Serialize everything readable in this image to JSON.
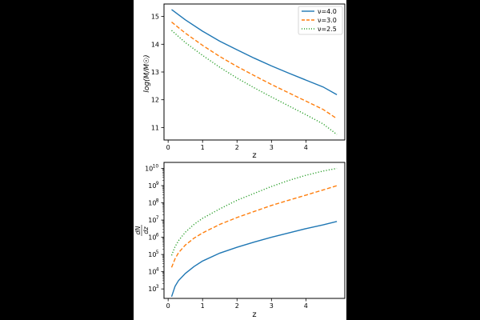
{
  "figure": {
    "background": "#ffffff",
    "page_background": "#000000"
  },
  "chart_data": [
    {
      "type": "line",
      "xlabel": "z",
      "ylabel_html": "log(M/M☉)",
      "ylabel": "log(M/M_☉)",
      "xlim": [
        -0.12,
        5.13
      ],
      "ylim": [
        10.55,
        15.45
      ],
      "x_ticks": [
        0,
        1,
        2,
        3,
        4
      ],
      "x_tick_labels": [
        "0",
        "1",
        "2",
        "3",
        "4"
      ],
      "y_ticks": [
        11,
        12,
        13,
        14,
        15
      ],
      "y_tick_labels": [
        "11",
        "12",
        "13",
        "14",
        "15"
      ],
      "legend": {
        "placement": "top-right"
      },
      "series": [
        {
          "name": "ν=4.0",
          "color": "#1f77b4",
          "dash": "solid",
          "x": [
            0.1,
            0.5,
            1.0,
            1.5,
            2.0,
            2.5,
            3.0,
            3.5,
            4.0,
            4.5,
            4.9
          ],
          "y": [
            15.25,
            14.88,
            14.47,
            14.11,
            13.8,
            13.5,
            13.22,
            12.96,
            12.71,
            12.46,
            12.18
          ]
        },
        {
          "name": "ν=3.0",
          "color": "#ff7f0e",
          "dash": "dashed",
          "x": [
            0.1,
            0.5,
            1.0,
            1.5,
            2.0,
            2.5,
            3.0,
            3.5,
            4.0,
            4.5,
            4.9
          ],
          "y": [
            14.8,
            14.4,
            13.96,
            13.56,
            13.2,
            12.87,
            12.55,
            12.25,
            11.95,
            11.65,
            11.32
          ]
        },
        {
          "name": "ν=2.5",
          "color": "#2ca02c",
          "dash": "dotted",
          "x": [
            0.1,
            0.5,
            1.0,
            1.5,
            2.0,
            2.5,
            3.0,
            3.5,
            4.0,
            4.5,
            4.9
          ],
          "y": [
            14.5,
            14.06,
            13.6,
            13.17,
            12.78,
            12.43,
            12.1,
            11.78,
            11.46,
            11.13,
            10.75
          ]
        }
      ]
    },
    {
      "type": "line",
      "xlabel": "z",
      "ylabel": "dN/dz",
      "ylabel_num": "dN",
      "ylabel_den": "dz",
      "yscale": "log",
      "xlim": [
        -0.12,
        5.13
      ],
      "ylim_log10": [
        2.45,
        10.35
      ],
      "x_ticks": [
        0,
        1,
        2,
        3,
        4
      ],
      "x_tick_labels": [
        "0",
        "1",
        "2",
        "3",
        "4"
      ],
      "y_tick_exponents": [
        3,
        4,
        5,
        6,
        7,
        8,
        9,
        10
      ],
      "y_tick_base": "10",
      "y_tick_exp_labels": [
        "3",
        "4",
        "5",
        "6",
        "7",
        "8",
        "9",
        "10"
      ],
      "series": [
        {
          "name": "ν=4.0",
          "color": "#1f77b4",
          "dash": "solid",
          "x": [
            0.1,
            0.2,
            0.3,
            0.5,
            0.75,
            1.0,
            1.5,
            2.0,
            2.5,
            3.0,
            3.5,
            4.0,
            4.5,
            4.9
          ],
          "log10_y": [
            2.55,
            3.15,
            3.48,
            3.9,
            4.3,
            4.62,
            5.08,
            5.42,
            5.72,
            6.0,
            6.25,
            6.5,
            6.72,
            6.92
          ]
        },
        {
          "name": "ν=3.0",
          "color": "#ff7f0e",
          "dash": "dashed",
          "x": [
            0.1,
            0.2,
            0.3,
            0.5,
            0.75,
            1.0,
            1.5,
            2.0,
            2.5,
            3.0,
            3.5,
            4.0,
            4.5,
            4.9
          ],
          "log10_y": [
            4.25,
            4.75,
            5.1,
            5.55,
            5.95,
            6.25,
            6.75,
            7.15,
            7.5,
            7.85,
            8.15,
            8.45,
            8.75,
            9.0
          ]
        },
        {
          "name": "ν=2.5",
          "color": "#2ca02c",
          "dash": "dotted",
          "x": [
            0.1,
            0.2,
            0.3,
            0.5,
            0.75,
            1.0,
            1.5,
            2.0,
            2.5,
            3.0,
            3.5,
            4.0,
            4.5,
            4.9
          ],
          "log10_y": [
            4.95,
            5.45,
            5.8,
            6.3,
            6.75,
            7.1,
            7.65,
            8.15,
            8.55,
            8.95,
            9.3,
            9.6,
            9.85,
            10.0
          ]
        }
      ]
    }
  ]
}
